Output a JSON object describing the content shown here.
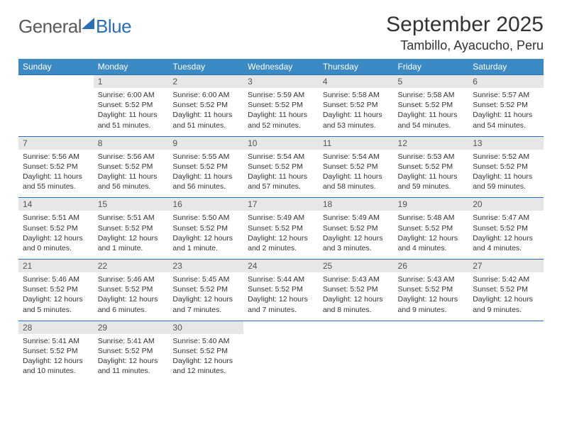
{
  "brand": {
    "part1": "General",
    "part2": "Blue"
  },
  "monthTitle": "September 2025",
  "location": "Tambillo, Ayacucho, Peru",
  "colors": {
    "headerBg": "#3b8ac4",
    "rule": "#2a6fb5",
    "dayNumBg": "#e7e7e7",
    "text": "#333333",
    "brandGray": "#5a5a5a",
    "brandBlue": "#2a6fb5",
    "pageBg": "#ffffff"
  },
  "dayNames": [
    "Sunday",
    "Monday",
    "Tuesday",
    "Wednesday",
    "Thursday",
    "Friday",
    "Saturday"
  ],
  "weeks": [
    [
      {
        "n": "",
        "sr": "",
        "ss": "",
        "dl": ""
      },
      {
        "n": "1",
        "sr": "Sunrise: 6:00 AM",
        "ss": "Sunset: 5:52 PM",
        "dl": "Daylight: 11 hours and 51 minutes."
      },
      {
        "n": "2",
        "sr": "Sunrise: 6:00 AM",
        "ss": "Sunset: 5:52 PM",
        "dl": "Daylight: 11 hours and 51 minutes."
      },
      {
        "n": "3",
        "sr": "Sunrise: 5:59 AM",
        "ss": "Sunset: 5:52 PM",
        "dl": "Daylight: 11 hours and 52 minutes."
      },
      {
        "n": "4",
        "sr": "Sunrise: 5:58 AM",
        "ss": "Sunset: 5:52 PM",
        "dl": "Daylight: 11 hours and 53 minutes."
      },
      {
        "n": "5",
        "sr": "Sunrise: 5:58 AM",
        "ss": "Sunset: 5:52 PM",
        "dl": "Daylight: 11 hours and 54 minutes."
      },
      {
        "n": "6",
        "sr": "Sunrise: 5:57 AM",
        "ss": "Sunset: 5:52 PM",
        "dl": "Daylight: 11 hours and 54 minutes."
      }
    ],
    [
      {
        "n": "7",
        "sr": "Sunrise: 5:56 AM",
        "ss": "Sunset: 5:52 PM",
        "dl": "Daylight: 11 hours and 55 minutes."
      },
      {
        "n": "8",
        "sr": "Sunrise: 5:56 AM",
        "ss": "Sunset: 5:52 PM",
        "dl": "Daylight: 11 hours and 56 minutes."
      },
      {
        "n": "9",
        "sr": "Sunrise: 5:55 AM",
        "ss": "Sunset: 5:52 PM",
        "dl": "Daylight: 11 hours and 56 minutes."
      },
      {
        "n": "10",
        "sr": "Sunrise: 5:54 AM",
        "ss": "Sunset: 5:52 PM",
        "dl": "Daylight: 11 hours and 57 minutes."
      },
      {
        "n": "11",
        "sr": "Sunrise: 5:54 AM",
        "ss": "Sunset: 5:52 PM",
        "dl": "Daylight: 11 hours and 58 minutes."
      },
      {
        "n": "12",
        "sr": "Sunrise: 5:53 AM",
        "ss": "Sunset: 5:52 PM",
        "dl": "Daylight: 11 hours and 59 minutes."
      },
      {
        "n": "13",
        "sr": "Sunrise: 5:52 AM",
        "ss": "Sunset: 5:52 PM",
        "dl": "Daylight: 11 hours and 59 minutes."
      }
    ],
    [
      {
        "n": "14",
        "sr": "Sunrise: 5:51 AM",
        "ss": "Sunset: 5:52 PM",
        "dl": "Daylight: 12 hours and 0 minutes."
      },
      {
        "n": "15",
        "sr": "Sunrise: 5:51 AM",
        "ss": "Sunset: 5:52 PM",
        "dl": "Daylight: 12 hours and 1 minute."
      },
      {
        "n": "16",
        "sr": "Sunrise: 5:50 AM",
        "ss": "Sunset: 5:52 PM",
        "dl": "Daylight: 12 hours and 1 minute."
      },
      {
        "n": "17",
        "sr": "Sunrise: 5:49 AM",
        "ss": "Sunset: 5:52 PM",
        "dl": "Daylight: 12 hours and 2 minutes."
      },
      {
        "n": "18",
        "sr": "Sunrise: 5:49 AM",
        "ss": "Sunset: 5:52 PM",
        "dl": "Daylight: 12 hours and 3 minutes."
      },
      {
        "n": "19",
        "sr": "Sunrise: 5:48 AM",
        "ss": "Sunset: 5:52 PM",
        "dl": "Daylight: 12 hours and 4 minutes."
      },
      {
        "n": "20",
        "sr": "Sunrise: 5:47 AM",
        "ss": "Sunset: 5:52 PM",
        "dl": "Daylight: 12 hours and 4 minutes."
      }
    ],
    [
      {
        "n": "21",
        "sr": "Sunrise: 5:46 AM",
        "ss": "Sunset: 5:52 PM",
        "dl": "Daylight: 12 hours and 5 minutes."
      },
      {
        "n": "22",
        "sr": "Sunrise: 5:46 AM",
        "ss": "Sunset: 5:52 PM",
        "dl": "Daylight: 12 hours and 6 minutes."
      },
      {
        "n": "23",
        "sr": "Sunrise: 5:45 AM",
        "ss": "Sunset: 5:52 PM",
        "dl": "Daylight: 12 hours and 7 minutes."
      },
      {
        "n": "24",
        "sr": "Sunrise: 5:44 AM",
        "ss": "Sunset: 5:52 PM",
        "dl": "Daylight: 12 hours and 7 minutes."
      },
      {
        "n": "25",
        "sr": "Sunrise: 5:43 AM",
        "ss": "Sunset: 5:52 PM",
        "dl": "Daylight: 12 hours and 8 minutes."
      },
      {
        "n": "26",
        "sr": "Sunrise: 5:43 AM",
        "ss": "Sunset: 5:52 PM",
        "dl": "Daylight: 12 hours and 9 minutes."
      },
      {
        "n": "27",
        "sr": "Sunrise: 5:42 AM",
        "ss": "Sunset: 5:52 PM",
        "dl": "Daylight: 12 hours and 9 minutes."
      }
    ],
    [
      {
        "n": "28",
        "sr": "Sunrise: 5:41 AM",
        "ss": "Sunset: 5:52 PM",
        "dl": "Daylight: 12 hours and 10 minutes."
      },
      {
        "n": "29",
        "sr": "Sunrise: 5:41 AM",
        "ss": "Sunset: 5:52 PM",
        "dl": "Daylight: 12 hours and 11 minutes."
      },
      {
        "n": "30",
        "sr": "Sunrise: 5:40 AM",
        "ss": "Sunset: 5:52 PM",
        "dl": "Daylight: 12 hours and 12 minutes."
      },
      {
        "n": "",
        "sr": "",
        "ss": "",
        "dl": ""
      },
      {
        "n": "",
        "sr": "",
        "ss": "",
        "dl": ""
      },
      {
        "n": "",
        "sr": "",
        "ss": "",
        "dl": ""
      },
      {
        "n": "",
        "sr": "",
        "ss": "",
        "dl": ""
      }
    ]
  ]
}
